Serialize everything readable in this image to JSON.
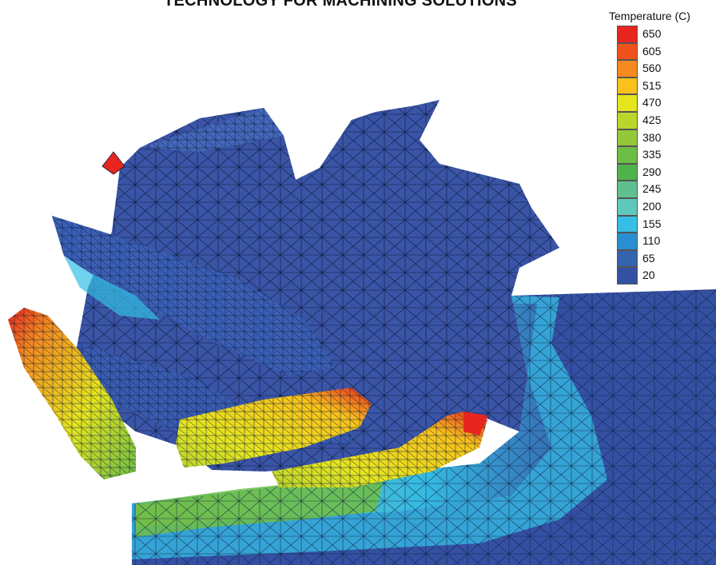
{
  "header": {
    "title": "TECHNOLOGY FOR MACHINING SOLUTIONS"
  },
  "legend": {
    "title": "Temperature (C)",
    "entries": [
      {
        "label": "650",
        "color": "#e8251e"
      },
      {
        "label": "605",
        "color": "#f0521b"
      },
      {
        "label": "560",
        "color": "#f58a1e"
      },
      {
        "label": "515",
        "color": "#f8c21a"
      },
      {
        "label": "470",
        "color": "#e6e51f"
      },
      {
        "label": "425",
        "color": "#bcd52d"
      },
      {
        "label": "380",
        "color": "#93c83b"
      },
      {
        "label": "335",
        "color": "#6ebd45"
      },
      {
        "label": "290",
        "color": "#4fb34c"
      },
      {
        "label": "245",
        "color": "#5fc08f"
      },
      {
        "label": "200",
        "color": "#5ec8bd"
      },
      {
        "label": "155",
        "color": "#35bfe6"
      },
      {
        "label": "110",
        "color": "#2a8fd0"
      },
      {
        "label": "65",
        "color": "#3663ad"
      },
      {
        "label": "20",
        "color": "#3450a2"
      }
    ]
  }
}
